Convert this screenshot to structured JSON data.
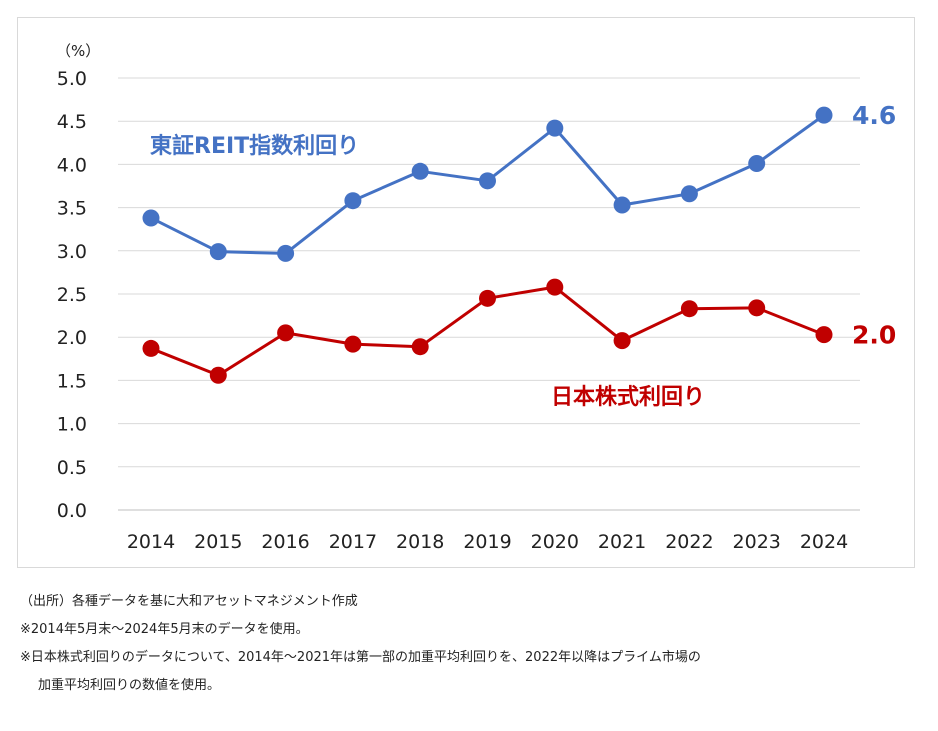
{
  "chart_data": {
    "type": "line",
    "categories": [
      "2014",
      "2015",
      "2016",
      "2017",
      "2018",
      "2019",
      "2020",
      "2021",
      "2022",
      "2023",
      "2024"
    ],
    "unit_label": "（%）",
    "ylim": [
      0,
      5
    ],
    "yticks": [
      "0.0",
      "0.5",
      "1.0",
      "1.5",
      "2.0",
      "2.5",
      "3.0",
      "3.5",
      "4.0",
      "4.5",
      "5.0"
    ],
    "grid": true,
    "series": [
      {
        "name": "東証REIT指数利回り",
        "color": "#4472c4",
        "values": [
          3.38,
          2.99,
          2.97,
          3.58,
          3.92,
          3.81,
          4.42,
          3.53,
          3.66,
          4.01,
          4.57
        ],
        "end_label": "4.6"
      },
      {
        "name": "日本株式利回り",
        "color": "#c00000",
        "values": [
          1.87,
          1.56,
          2.05,
          1.92,
          1.89,
          2.45,
          2.58,
          1.96,
          2.33,
          2.34,
          2.03
        ],
        "end_label": "2.0"
      }
    ]
  },
  "notes": {
    "source": "（出所）各種データを基に大和アセットマネジメント作成",
    "note1": "※2014年5月末～2024年5月末のデータを使用。",
    "note2_line1": "※日本株式利回りのデータについて、2014年～2021年は第一部の加重平均利回りを、2022年以降はプライム市場の",
    "note2_line2": "加重平均利回りの数値を使用。"
  }
}
